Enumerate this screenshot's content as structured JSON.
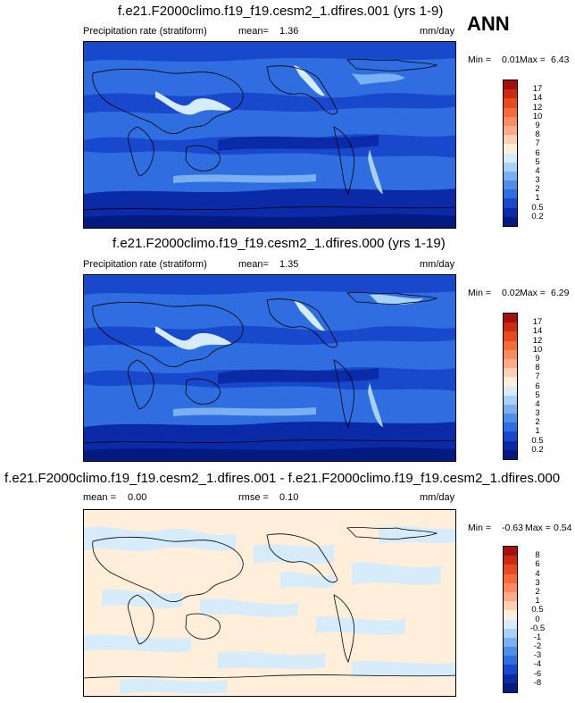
{
  "season": "ANN",
  "panels": [
    {
      "title": "f.e21.F2000climo.f19_f19.cesm2_1.dfires.001 (yrs 1-9)",
      "variable": "Precipitation rate (stratiform)",
      "stat_label": "mean=",
      "stat_value": "1.36",
      "units": "mm/day",
      "min_label": "Min =",
      "min_value": "0.01",
      "max_label": "Max =",
      "max_value": "6.43",
      "colorbar": {
        "labels": [
          "17",
          "14",
          "12",
          "10",
          "9",
          "8",
          "7",
          "6",
          "5",
          "4",
          "3",
          "2",
          "1",
          "0.5",
          "0.2"
        ],
        "colors": [
          "#a50f0f",
          "#cc2a10",
          "#e84a1f",
          "#f56a3a",
          "#fa8a60",
          "#fcaa88",
          "#fdd0b4",
          "#ffeeda",
          "#d6ecfa",
          "#a9d0f5",
          "#7ab0f0",
          "#4f8ee8",
          "#2f6ee0",
          "#1848cc",
          "#0b2aa8",
          "#031a80"
        ]
      }
    },
    {
      "title": "f.e21.F2000climo.f19_f19.cesm2_1.dfires.000 (yrs 1-19)",
      "variable": "Precipitation rate (stratiform)",
      "stat_label": "mean=",
      "stat_value": "1.35",
      "units": "mm/day",
      "min_label": "Min =",
      "min_value": "0.02",
      "max_label": "Max =",
      "max_value": "6.29",
      "colorbar": {
        "labels": [
          "17",
          "14",
          "12",
          "10",
          "9",
          "8",
          "7",
          "6",
          "5",
          "4",
          "3",
          "2",
          "1",
          "0.5",
          "0.2"
        ],
        "colors": [
          "#a50f0f",
          "#cc2a10",
          "#e84a1f",
          "#f56a3a",
          "#fa8a60",
          "#fcaa88",
          "#fdd0b4",
          "#ffeeda",
          "#d6ecfa",
          "#a9d0f5",
          "#7ab0f0",
          "#4f8ee8",
          "#2f6ee0",
          "#1848cc",
          "#0b2aa8",
          "#031a80"
        ]
      }
    },
    {
      "title": "f.e21.F2000climo.f19_f19.cesm2_1.dfires.001 - f.e21.F2000climo.f19_f19.cesm2_1.dfires.000",
      "stat_label": "mean =",
      "stat_value": "0.00",
      "rmse_label": "rmse =",
      "rmse_value": "0.10",
      "units": "mm/day",
      "min_label": "Min =",
      "min_value": "-0.63",
      "max_label": "Max =",
      "max_value": "0.54",
      "colorbar": {
        "labels": [
          "8",
          "6",
          "4",
          "3",
          "2",
          "1",
          "0.5",
          "0",
          "-0.5",
          "-1",
          "-2",
          "-3",
          "-4",
          "-6",
          "-8"
        ],
        "colors": [
          "#a50f0f",
          "#cc2a10",
          "#e84a1f",
          "#f56a3a",
          "#fa8a60",
          "#fcaa88",
          "#fdd0b4",
          "#ffeeda",
          "#d6ecfa",
          "#a9d0f5",
          "#7ab0f0",
          "#4f8ee8",
          "#2f6ee0",
          "#1848cc",
          "#0b2aa8",
          "#031a80"
        ]
      }
    }
  ]
}
